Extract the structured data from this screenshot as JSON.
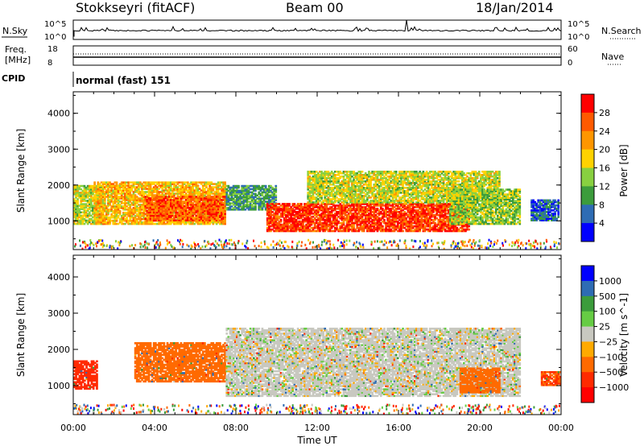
{
  "header": {
    "site": "Stokkseyri (fitACF)",
    "beam": "Beam 00",
    "date": "18/Jan/2014"
  },
  "strip_panels": {
    "nsky": {
      "label": "N.Sky",
      "ticks": [
        "10^5",
        "10^0"
      ],
      "right_label": "N.Search",
      "right_ticks": [
        "10^5",
        "10^0"
      ]
    },
    "freq": {
      "label_line1": "Freq.",
      "label_line2": "[MHz]",
      "ticks": [
        "18",
        "8"
      ],
      "right_label": "Nave",
      "right_ticks": [
        "60",
        "0"
      ]
    },
    "cpid": {
      "label": "CPID",
      "value": "normal (fast) 151"
    }
  },
  "chart_data": [
    {
      "type": "heatmap",
      "parameter": "Power",
      "ylabel": "Slant Range [km]",
      "ylim": [
        200,
        4600
      ],
      "yticks": [
        1000,
        2000,
        3000,
        4000
      ],
      "xlim": [
        0,
        24
      ],
      "colorbar": {
        "label": "Power [dB]",
        "ticks": [
          "28",
          "24",
          "20",
          "16",
          "12",
          "8",
          "4"
        ],
        "colors": [
          "#ff0000",
          "#ff5a00",
          "#ff9600",
          "#ffd200",
          "#88d040",
          "#3c9c3c",
          "#2e6cb4",
          "#0000ff"
        ]
      },
      "features": [
        {
          "time_start": 0.0,
          "time_end": 1.5,
          "range_start": 900,
          "range_end": 2000,
          "level_db": 16
        },
        {
          "time_start": 1.0,
          "time_end": 7.5,
          "range_start": 900,
          "range_end": 2100,
          "level_db": 20
        },
        {
          "time_start": 3.5,
          "time_end": 7.5,
          "range_start": 1000,
          "range_end": 1700,
          "level_db": 26
        },
        {
          "time_start": 7.5,
          "time_end": 10.0,
          "range_start": 1300,
          "range_end": 2000,
          "level_db": 10
        },
        {
          "time_start": 9.5,
          "time_end": 19.5,
          "range_start": 700,
          "range_end": 1500,
          "level_db": 28
        },
        {
          "time_start": 11.5,
          "time_end": 21.0,
          "range_start": 1500,
          "range_end": 2400,
          "level_db": 16
        },
        {
          "time_start": 18.5,
          "time_end": 22.0,
          "range_start": 900,
          "range_end": 1900,
          "level_db": 14
        },
        {
          "time_start": 22.5,
          "time_end": 23.9,
          "range_start": 1000,
          "range_end": 1600,
          "level_db": 6
        }
      ]
    },
    {
      "type": "heatmap",
      "parameter": "Velocity",
      "ylabel": "Slant Range [km]",
      "xlabel": "Time UT",
      "ylim": [
        200,
        4600
      ],
      "yticks": [
        1000,
        2000,
        3000,
        4000
      ],
      "xlim": [
        0,
        24
      ],
      "xticks": [
        "00:00",
        "04:00",
        "08:00",
        "12:00",
        "16:00",
        "20:00",
        "00:00"
      ],
      "colorbar": {
        "label": "Velocity [m s^-1]",
        "ticks": [
          "1000",
          "500",
          "100",
          "25",
          "−25",
          "−100",
          "−500",
          "−1000"
        ],
        "colors": [
          "#0000ff",
          "#2e6cb4",
          "#3c9c3c",
          "#66cc44",
          "#c8c8c0",
          "#ffaa00",
          "#ff6a00",
          "#ff2a00",
          "#ff0000"
        ]
      },
      "features": [
        {
          "time_start": 0.0,
          "time_end": 1.2,
          "range_start": 900,
          "range_end": 1700,
          "velocity": -500
        },
        {
          "time_start": 3.0,
          "time_end": 7.5,
          "range_start": 1100,
          "range_end": 2200,
          "velocity": -300
        },
        {
          "time_start": 7.5,
          "time_end": 22.0,
          "range_start": 700,
          "range_end": 2600,
          "velocity": 0
        },
        {
          "time_start": 19.0,
          "time_end": 21.0,
          "range_start": 800,
          "range_end": 1500,
          "velocity": -200
        },
        {
          "time_start": 23.0,
          "time_end": 24.0,
          "range_start": 1000,
          "range_end": 1400,
          "velocity": -400
        }
      ]
    }
  ]
}
